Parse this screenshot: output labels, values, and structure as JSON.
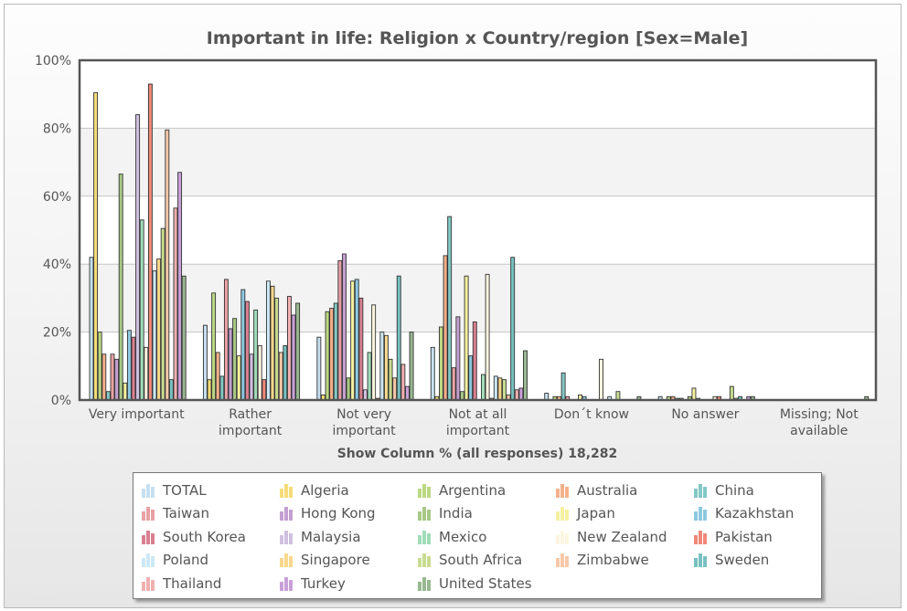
{
  "chart_data": {
    "type": "bar",
    "title": "Important in life: Religion x Country/region [Sex=Male]",
    "xlabel": "Show Column % (all responses) 18,282",
    "ylabel": "",
    "ylim": [
      0,
      100
    ],
    "y_ticks": [
      "0%",
      "20%",
      "40%",
      "60%",
      "80%",
      "100%"
    ],
    "grid": true,
    "legend_position": "bottom",
    "categories": [
      "Very important",
      "Rather important",
      "Not very important",
      "Not at all important",
      "Don´t know",
      "No answer",
      "Missing; Not available"
    ],
    "series": [
      {
        "name": "TOTAL",
        "color": "#c5e0f0",
        "values": [
          42,
          22,
          18.5,
          15.5,
          2,
          1,
          0
        ]
      },
      {
        "name": "Algeria",
        "color": "#f5dc78",
        "values": [
          90.5,
          6,
          1.5,
          1,
          0,
          0,
          0
        ]
      },
      {
        "name": "Argentina",
        "color": "#bcd882",
        "values": [
          20,
          31.5,
          26,
          21.5,
          1,
          1,
          0
        ]
      },
      {
        "name": "Australia",
        "color": "#f5b08a",
        "values": [
          13.5,
          14,
          27,
          42.5,
          1,
          1,
          0
        ]
      },
      {
        "name": "China",
        "color": "#82c8c5",
        "values": [
          2.5,
          7,
          28.5,
          54,
          8,
          0.5,
          0
        ]
      },
      {
        "name": "Taiwan",
        "color": "#e8a0a4",
        "values": [
          13.5,
          35.5,
          41,
          9.5,
          1,
          0.5,
          0
        ]
      },
      {
        "name": "Hong Kong",
        "color": "#c4a0d0",
        "values": [
          12,
          21,
          43,
          24.5,
          0,
          0,
          0
        ]
      },
      {
        "name": "India",
        "color": "#a8c885",
        "values": [
          66.5,
          24,
          6.5,
          2.5,
          0,
          1,
          0
        ]
      },
      {
        "name": "Japan",
        "color": "#f5f0a0",
        "values": [
          5,
          13,
          35,
          36.5,
          1.5,
          3.5,
          0
        ]
      },
      {
        "name": "Kazakhstan",
        "color": "#8cc8e0",
        "values": [
          20.5,
          32.5,
          35.5,
          13,
          1,
          0.5,
          0
        ]
      },
      {
        "name": "South Korea",
        "color": "#d88090",
        "values": [
          18.5,
          29,
          30,
          23,
          0,
          0,
          0
        ]
      },
      {
        "name": "Malaysia",
        "color": "#d0c0e0",
        "values": [
          84,
          13.5,
          3,
          0,
          0,
          0,
          0
        ]
      },
      {
        "name": "Mexico",
        "color": "#a0dcb8",
        "values": [
          53,
          26.5,
          14,
          7.5,
          0,
          0,
          0
        ]
      },
      {
        "name": "New Zealand",
        "color": "#fcf5e0",
        "values": [
          15.5,
          16,
          28,
          37,
          12,
          1,
          0
        ]
      },
      {
        "name": "Pakistan",
        "color": "#f08878",
        "values": [
          93,
          6,
          0.5,
          0.5,
          0,
          1,
          0
        ]
      },
      {
        "name": "Poland",
        "color": "#cce8f5",
        "values": [
          38,
          35,
          20,
          7,
          1,
          0,
          0
        ]
      },
      {
        "name": "Singapore",
        "color": "#f8d88c",
        "values": [
          41.5,
          33.5,
          19,
          6.5,
          0,
          0,
          0
        ]
      },
      {
        "name": "South Africa",
        "color": "#c8dc90",
        "values": [
          50.5,
          30,
          12,
          6,
          2.5,
          4,
          0
        ]
      },
      {
        "name": "Zimbabwe",
        "color": "#f8c8a8",
        "values": [
          79.5,
          14,
          6.5,
          1.5,
          0,
          0.5,
          0
        ]
      },
      {
        "name": "Sweden",
        "color": "#78c0c0",
        "values": [
          6,
          16,
          36.5,
          42,
          0,
          1,
          0
        ]
      },
      {
        "name": "Thailand",
        "color": "#f0b0b0",
        "values": [
          56.5,
          30.5,
          10.5,
          3,
          0,
          0,
          0
        ]
      },
      {
        "name": "Turkey",
        "color": "#c8a0d8",
        "values": [
          67,
          25,
          4,
          3.5,
          0,
          1,
          0
        ]
      },
      {
        "name": "United States",
        "color": "#98b890",
        "values": [
          36.5,
          28.5,
          20,
          14.5,
          1,
          1,
          1
        ]
      }
    ]
  }
}
